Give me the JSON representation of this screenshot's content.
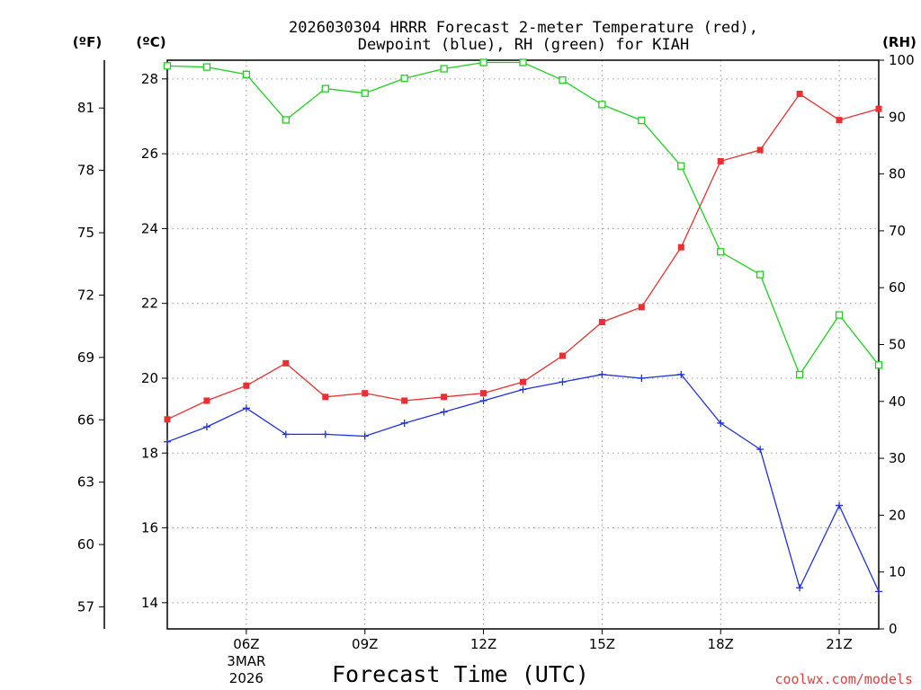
{
  "chart_data": {
    "type": "line",
    "title_line1": "2026030304 HRRR Forecast 2-meter Temperature (red),",
    "title_line2": "Dewpoint (blue), RH (green) for KIAH",
    "xlabel": "Forecast Time (UTC)",
    "credit": "coolwx.com/models",
    "units": {
      "fahrenheit": "(ºF)",
      "celsius": "(ºC)",
      "rh": "(RH)"
    },
    "x": [
      4,
      5,
      6,
      7,
      8,
      9,
      10,
      11,
      12,
      13,
      14,
      15,
      16,
      17,
      18,
      19,
      20,
      21,
      22
    ],
    "xlim": [
      4,
      22
    ],
    "x_ticks": [
      {
        "value": 6,
        "label": "06Z",
        "sub1": "3MAR",
        "sub2": "2026"
      },
      {
        "value": 9,
        "label": "09Z",
        "sub1": "",
        "sub2": ""
      },
      {
        "value": 12,
        "label": "12Z",
        "sub1": "",
        "sub2": ""
      },
      {
        "value": 15,
        "label": "15Z",
        "sub1": "",
        "sub2": ""
      },
      {
        "value": 18,
        "label": "18Z",
        "sub1": "",
        "sub2": ""
      },
      {
        "value": 21,
        "label": "21Z",
        "sub1": "",
        "sub2": ""
      }
    ],
    "ylim_c": [
      13.3,
      28.5
    ],
    "c_ticks": [
      "14",
      "16",
      "18",
      "20",
      "22",
      "24",
      "26",
      "28"
    ],
    "f_ticks": [
      "57",
      "60",
      "63",
      "66",
      "69",
      "72",
      "75",
      "78",
      "81"
    ],
    "ylim_rh": [
      0,
      100
    ],
    "rh_ticks": [
      "0",
      "10",
      "20",
      "30",
      "40",
      "50",
      "60",
      "70",
      "80",
      "90",
      "100"
    ],
    "series": [
      {
        "name": "Temperature",
        "axis": "celsius",
        "color": "#e83030",
        "marker": "filled-square",
        "values": [
          18.9,
          19.4,
          19.8,
          20.4,
          19.5,
          19.6,
          19.4,
          19.5,
          19.6,
          19.9,
          20.6,
          21.5,
          21.9,
          23.5,
          25.8,
          26.1,
          27.6,
          26.9,
          27.2
        ]
      },
      {
        "name": "Dewpoint",
        "axis": "celsius",
        "color": "#2030e0",
        "marker": "plus",
        "values": [
          18.3,
          18.7,
          19.2,
          18.5,
          18.5,
          18.45,
          18.8,
          19.1,
          19.4,
          19.7,
          19.9,
          20.1,
          20.0,
          20.1,
          18.8,
          18.1,
          14.4,
          16.6,
          14.3
        ]
      },
      {
        "name": "RH",
        "axis": "rh",
        "color": "#20d020",
        "marker": "open-square",
        "values": [
          99,
          98.8,
          97.5,
          89.5,
          95,
          94.2,
          96.8,
          98.5,
          99.6,
          99.6,
          96.5,
          92.2,
          89.4,
          81.4,
          66.3,
          62.3,
          44.7,
          55.2,
          46.4
        ]
      }
    ]
  }
}
